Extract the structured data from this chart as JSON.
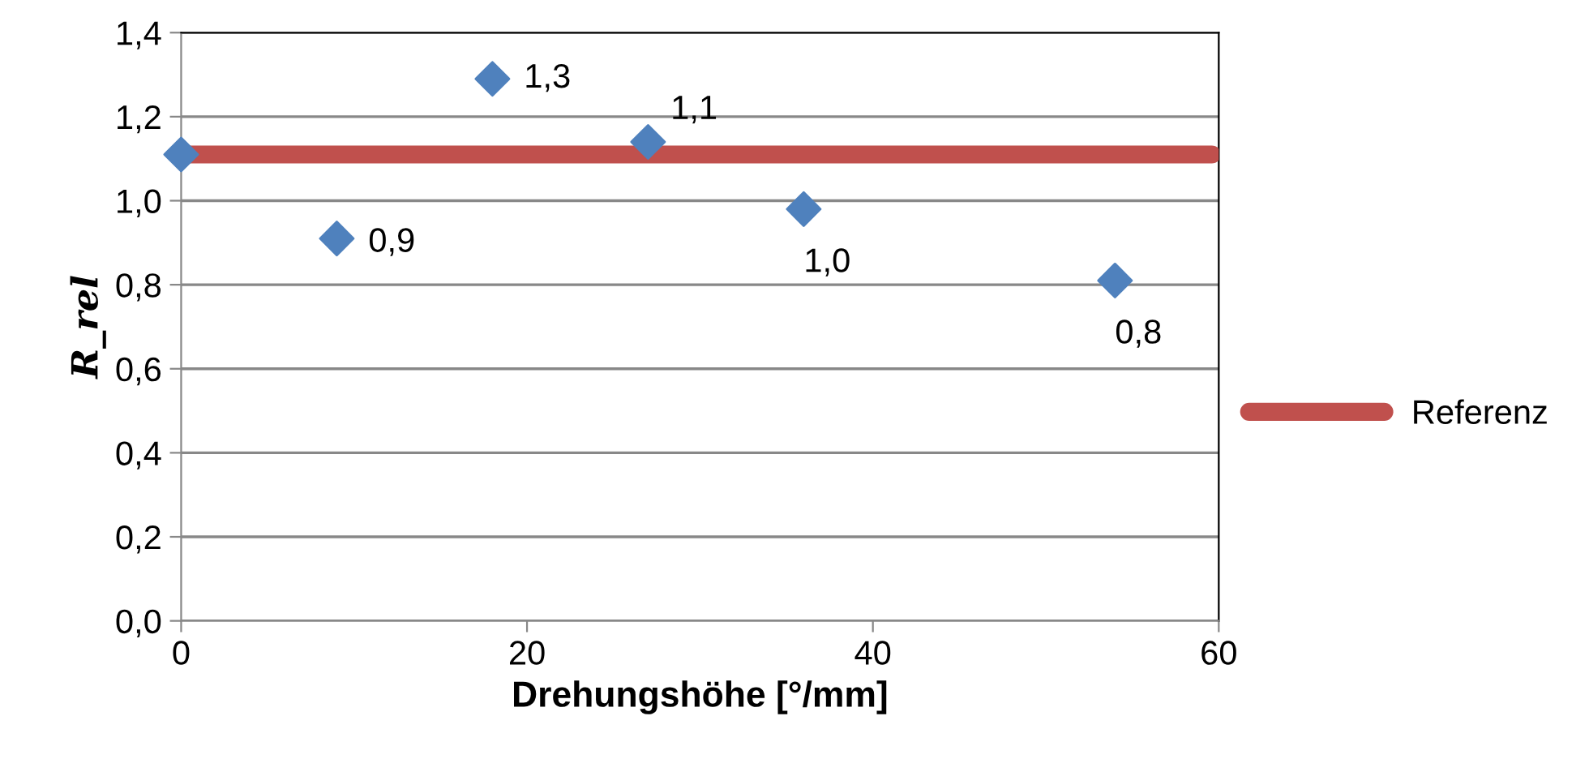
{
  "chart_data": {
    "type": "scatter",
    "xlabel": "Drehungshöhe [°/mm]",
    "ylabel": "R_rel",
    "xlim": [
      0,
      60
    ],
    "xticks": [
      0,
      20,
      40,
      60
    ],
    "ylim": [
      0,
      1.4
    ],
    "yticks": [
      {
        "value": 0,
        "label": "0,0"
      },
      {
        "value": 0.2,
        "label": "0,2"
      },
      {
        "value": 0.4,
        "label": "0,4"
      },
      {
        "value": 0.6,
        "label": "0,6"
      },
      {
        "value": 0.8,
        "label": "0,8"
      },
      {
        "value": 1.0,
        "label": "1,0"
      },
      {
        "value": 1.2,
        "label": "1,2"
      },
      {
        "value": 1.4,
        "label": "1,4"
      }
    ],
    "grid": "y",
    "legend": "right",
    "marker": "diamond",
    "series": [
      {
        "color": "#4f81bd",
        "x": [
          0,
          9,
          18,
          27,
          36,
          54
        ],
        "values": [
          1.11,
          0.91,
          1.29,
          1.14,
          0.98,
          0.81
        ],
        "value_labels": [
          null,
          "0,9",
          "1,3",
          "1,1",
          "1,0",
          "0,8"
        ]
      },
      {
        "type": "line",
        "name": "Referenz",
        "color": "#c0504d",
        "x": [
          0,
          59.6
        ],
        "values": [
          1.11,
          1.11
        ],
        "marker": "none"
      }
    ]
  }
}
